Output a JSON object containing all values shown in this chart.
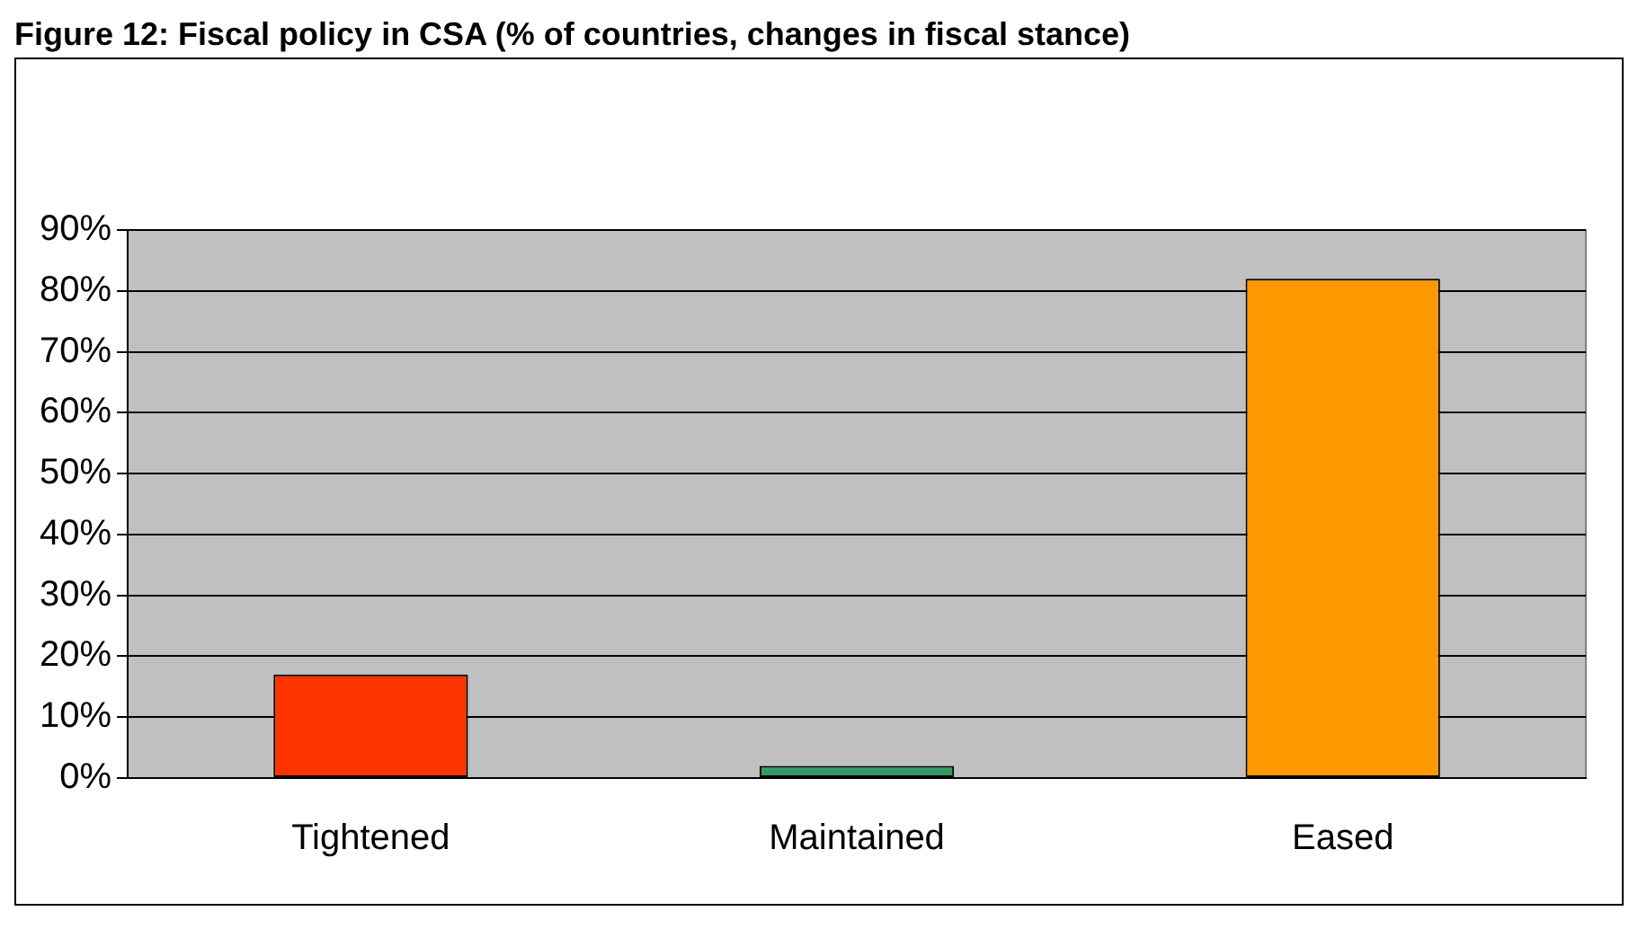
{
  "chart_data": {
    "type": "bar",
    "title": "Figure 12: Fiscal policy in CSA (% of countries, changes in fiscal stance)",
    "categories": [
      "Tightened",
      "Maintained",
      "Eased"
    ],
    "values": [
      17,
      2,
      82
    ],
    "colors": [
      "#ff3300",
      "#339966",
      "#ff9900"
    ],
    "ylim": [
      0,
      90
    ],
    "yticks": [
      {
        "value": 0,
        "label": "0%"
      },
      {
        "value": 10,
        "label": "10%"
      },
      {
        "value": 20,
        "label": "20%"
      },
      {
        "value": 30,
        "label": "30%"
      },
      {
        "value": 40,
        "label": "40%"
      },
      {
        "value": 50,
        "label": "50%"
      },
      {
        "value": 60,
        "label": "60%"
      },
      {
        "value": 70,
        "label": "70%"
      },
      {
        "value": 80,
        "label": "80%"
      },
      {
        "value": 90,
        "label": "90%"
      }
    ],
    "grid": "y",
    "legend": false
  }
}
